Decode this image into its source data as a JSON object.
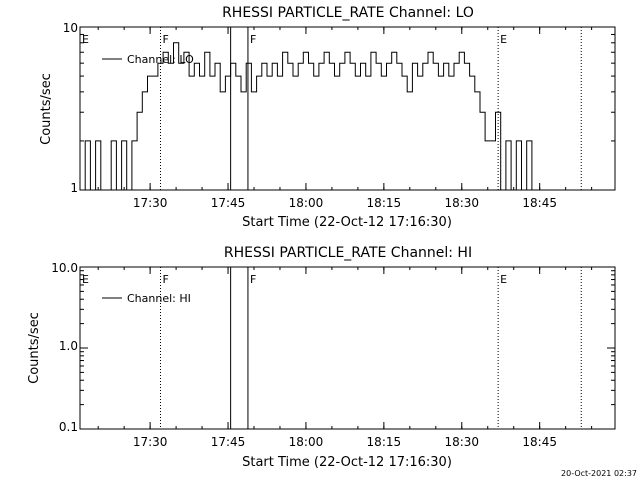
{
  "footer": {
    "timestamp": "20-Oct-2021 02:37"
  },
  "chart_data": [
    {
      "type": "line",
      "title": "RHESSI PARTICLE_RATE Channel: LO",
      "xlabel": "Start Time (22-Oct-12 17:16:30)",
      "ylabel": "Counts/sec",
      "y_scale": "log",
      "ylim": [
        1,
        10
      ],
      "y_ticks": [
        "1",
        "10"
      ],
      "xlim_minutes": [
        0,
        103
      ],
      "x_ticks": [
        "17:30",
        "17:45",
        "18:00",
        "18:15",
        "18:30",
        "18:45"
      ],
      "legend": {
        "entries": [
          "Channel: LO"
        ],
        "placement": "top-left"
      },
      "flags": [
        {
          "label": "E",
          "style": "dotted"
        },
        {
          "label": "F",
          "style": "dotted"
        },
        {
          "label": "",
          "style": "solid"
        },
        {
          "label": "F",
          "style": "solid"
        },
        {
          "label": "E",
          "style": "dotted"
        },
        {
          "label": "",
          "style": "dotted"
        }
      ],
      "flag_times": [
        "17:16:30",
        "17:32:00",
        "17:45:30",
        "17:48:50",
        "18:37:00",
        "18:53:00"
      ],
      "series": [
        {
          "name": "Channel: LO",
          "times": [
            "17:16:30",
            "17:17:30",
            "17:18:30",
            "17:19:30",
            "17:20:30",
            "17:21:30",
            "17:22:30",
            "17:23:30",
            "17:24:30",
            "17:25:30",
            "17:26:30",
            "17:27:30",
            "17:28:30",
            "17:29:30",
            "17:30:30",
            "17:31:30",
            "17:32:30",
            "17:33:30",
            "17:34:30",
            "17:35:30",
            "17:36:30",
            "17:37:30",
            "17:38:30",
            "17:39:30",
            "17:40:30",
            "17:41:30",
            "17:42:30",
            "17:43:30",
            "17:44:30",
            "17:45:30",
            "17:46:30",
            "17:47:30",
            "17:48:30",
            "17:49:30",
            "17:50:30",
            "17:51:30",
            "17:52:30",
            "17:53:30",
            "17:54:30",
            "17:55:30",
            "17:56:30",
            "17:57:30",
            "17:58:30",
            "17:59:30",
            "18:00:30",
            "18:01:30",
            "18:02:30",
            "18:03:30",
            "18:04:30",
            "18:05:30",
            "18:06:30",
            "18:07:30",
            "18:08:30",
            "18:09:30",
            "18:10:30",
            "18:11:30",
            "18:12:30",
            "18:13:30",
            "18:14:30",
            "18:15:30",
            "18:16:30",
            "18:17:30",
            "18:18:30",
            "18:19:30",
            "18:20:30",
            "18:21:30",
            "18:22:30",
            "18:23:30",
            "18:24:30",
            "18:25:30",
            "18:26:30",
            "18:27:30",
            "18:28:30",
            "18:29:30",
            "18:30:30",
            "18:31:30",
            "18:32:30",
            "18:33:30",
            "18:34:30",
            "18:35:30",
            "18:36:30",
            "18:37:30",
            "18:38:30",
            "18:39:30",
            "18:40:30",
            "18:41:30",
            "18:42:30",
            "18:43:30",
            "18:44:30",
            "18:45:30",
            "18:46:30",
            "18:47:30",
            "18:48:30",
            "18:49:30",
            "18:50:30"
          ],
          "values": [
            1,
            2,
            1,
            2,
            1,
            1,
            2,
            1,
            2,
            1,
            2,
            3,
            4,
            5,
            5,
            6,
            7,
            6,
            8,
            6,
            7,
            5,
            6,
            5,
            7,
            5,
            6,
            4,
            5,
            6,
            5,
            4,
            6,
            4,
            5,
            6,
            5,
            6,
            5,
            7,
            6,
            5,
            6,
            7,
            6,
            5,
            6,
            7,
            6,
            5,
            6,
            7,
            6,
            5,
            6,
            5,
            7,
            6,
            5,
            6,
            7,
            6,
            5,
            4,
            6,
            5,
            6,
            7,
            6,
            5,
            6,
            5,
            6,
            7,
            6,
            5,
            4,
            3,
            2,
            2,
            3,
            1,
            2,
            1,
            2,
            1,
            2,
            1,
            1,
            1,
            1,
            1,
            1,
            1,
            1
          ],
          "color": "#000000"
        }
      ]
    },
    {
      "type": "line",
      "title": "RHESSI PARTICLE_RATE Channel: HI",
      "xlabel": "Start Time (22-Oct-12 17:16:30)",
      "ylabel": "Counts/sec",
      "y_scale": "log",
      "ylim": [
        0.1,
        10
      ],
      "y_ticks": [
        "0.1",
        "1.0",
        "10.0"
      ],
      "xlim_minutes": [
        0,
        103
      ],
      "x_ticks": [
        "17:30",
        "17:45",
        "18:00",
        "18:15",
        "18:30",
        "18:45"
      ],
      "legend": {
        "entries": [
          "Channel: HI"
        ],
        "placement": "top-left"
      },
      "flags": [
        {
          "label": "E",
          "style": "dotted"
        },
        {
          "label": "F",
          "style": "dotted"
        },
        {
          "label": "",
          "style": "solid"
        },
        {
          "label": "F",
          "style": "solid"
        },
        {
          "label": "E",
          "style": "dotted"
        },
        {
          "label": "",
          "style": "dotted"
        }
      ],
      "flag_times": [
        "17:16:30",
        "17:32:00",
        "17:45:30",
        "17:48:50",
        "18:37:00",
        "18:53:00"
      ],
      "series": [
        {
          "name": "Channel: HI",
          "times": [],
          "values": [],
          "color": "#000000"
        }
      ]
    }
  ]
}
